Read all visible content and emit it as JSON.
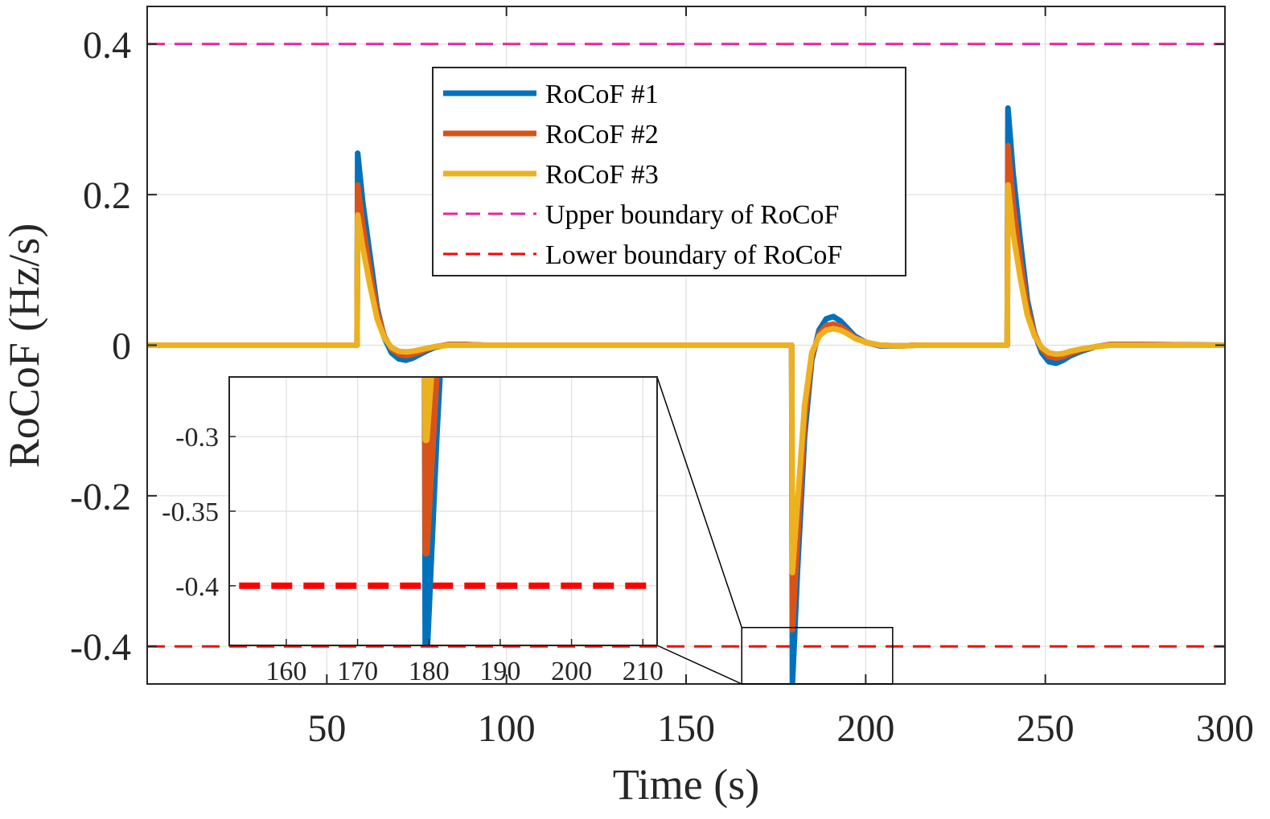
{
  "chart_data": {
    "type": "line",
    "xlabel": "Time (s)",
    "ylabel": "RoCoF (Hz/s)",
    "xlim": [
      0,
      300
    ],
    "ylim": [
      -0.45,
      0.45
    ],
    "xticks": [
      50,
      100,
      150,
      200,
      250,
      300
    ],
    "xtick_labels": [
      "50",
      "100",
      "150",
      "200",
      "250",
      "300"
    ],
    "yticks": [
      0.4,
      0.2,
      0,
      -0.2,
      -0.4
    ],
    "ytick_labels": [
      "0.4",
      "0.2",
      "0",
      "-0.2",
      "-0.4"
    ],
    "grid": true,
    "legend_position": "top-center",
    "series": [
      {
        "name": "RoCoF #1",
        "color": "#0072BD",
        "style": "solid",
        "x": [
          0,
          58.4,
          58.6,
          60,
          62,
          64,
          66,
          68,
          70,
          72,
          74,
          76,
          78,
          80,
          84,
          88,
          94,
          100,
          179.4,
          179.6,
          181,
          183,
          185,
          187,
          189,
          191,
          193,
          195,
          197,
          200,
          204,
          210,
          214,
          220,
          239.4,
          239.6,
          241,
          243,
          245,
          247,
          249,
          251,
          253,
          255,
          257,
          260,
          264,
          268,
          275,
          300
        ],
        "y": [
          0,
          0,
          0.255,
          0.19,
          0.12,
          0.05,
          0.01,
          -0.01,
          -0.018,
          -0.02,
          -0.017,
          -0.012,
          -0.007,
          -0.003,
          0.001,
          0.001,
          0,
          0,
          0,
          -0.45,
          -0.3,
          -0.12,
          -0.02,
          0.02,
          0.035,
          0.038,
          0.032,
          0.022,
          0.012,
          0.004,
          -0.001,
          -0.001,
          0,
          0,
          0,
          0.315,
          0.23,
          0.14,
          0.06,
          0.015,
          -0.01,
          -0.022,
          -0.024,
          -0.02,
          -0.014,
          -0.008,
          -0.002,
          0.001,
          0.001,
          0
        ]
      },
      {
        "name": "RoCoF #2",
        "color": "#D95319",
        "style": "solid",
        "x": [
          0,
          58.4,
          58.6,
          60,
          62,
          64,
          66,
          68,
          70,
          72,
          74,
          76,
          78,
          80,
          84,
          88,
          94,
          100,
          179.4,
          179.6,
          181,
          183,
          185,
          187,
          189,
          191,
          193,
          195,
          197,
          200,
          204,
          210,
          214,
          220,
          239.4,
          239.6,
          241,
          243,
          245,
          247,
          249,
          251,
          253,
          255,
          257,
          260,
          264,
          268,
          275,
          300
        ],
        "y": [
          0,
          0,
          0.213,
          0.16,
          0.1,
          0.045,
          0.012,
          -0.005,
          -0.012,
          -0.014,
          -0.012,
          -0.009,
          -0.005,
          -0.002,
          0.001,
          0.001,
          0,
          0,
          0,
          -0.378,
          -0.26,
          -0.1,
          -0.015,
          0.015,
          0.026,
          0.028,
          0.025,
          0.018,
          0.01,
          0.004,
          0,
          -0.001,
          0,
          0,
          0,
          0.265,
          0.19,
          0.115,
          0.05,
          0.015,
          -0.005,
          -0.015,
          -0.017,
          -0.015,
          -0.011,
          -0.006,
          -0.002,
          0.001,
          0.001,
          0
        ]
      },
      {
        "name": "RoCoF #3",
        "color": "#EDB120",
        "style": "solid",
        "x": [
          0,
          58.4,
          58.6,
          60,
          62,
          64,
          66,
          68,
          70,
          72,
          74,
          76,
          78,
          80,
          84,
          88,
          94,
          100,
          179.4,
          179.6,
          181,
          183,
          185,
          187,
          189,
          191,
          193,
          195,
          197,
          200,
          204,
          210,
          214,
          220,
          239.4,
          239.6,
          241,
          243,
          245,
          247,
          249,
          251,
          253,
          255,
          257,
          260,
          264,
          268,
          275,
          300
        ],
        "y": [
          0,
          0,
          0.173,
          0.13,
          0.08,
          0.035,
          0.01,
          -0.003,
          -0.008,
          -0.009,
          -0.008,
          -0.006,
          -0.004,
          -0.002,
          0,
          0,
          0,
          0,
          0,
          -0.302,
          -0.21,
          -0.08,
          -0.01,
          0.012,
          0.02,
          0.022,
          0.02,
          0.015,
          0.009,
          0.004,
          0,
          -0.001,
          0,
          0,
          0,
          0.213,
          0.15,
          0.09,
          0.04,
          0.012,
          -0.003,
          -0.01,
          -0.012,
          -0.011,
          -0.008,
          -0.005,
          -0.002,
          0,
          0,
          0
        ]
      },
      {
        "name": "Upper boundary of RoCoF",
        "color": "#E6259E",
        "style": "dashed",
        "x": [
          0,
          300
        ],
        "y": [
          0.4,
          0.4
        ]
      },
      {
        "name": "Lower boundary of RoCoF",
        "color": "#FF0000",
        "style": "dashed",
        "x": [
          0,
          300
        ],
        "y": [
          -0.4,
          -0.4
        ]
      }
    ],
    "inset": {
      "xlim": [
        152,
        212
      ],
      "ylim": [
        -0.44,
        -0.26
      ],
      "xticks": [
        160,
        170,
        180,
        190,
        200,
        210
      ],
      "xtick_labels": [
        "160",
        "170",
        "180",
        "190",
        "200",
        "210"
      ],
      "yticks": [
        -0.3,
        -0.35,
        -0.4
      ],
      "ytick_labels": [
        "-0.3",
        "-0.35",
        "-0.4"
      ],
      "zoom_region": {
        "xlim": [
          165.5,
          207.5
        ],
        "ylim": [
          -0.45,
          -0.375
        ]
      }
    }
  }
}
